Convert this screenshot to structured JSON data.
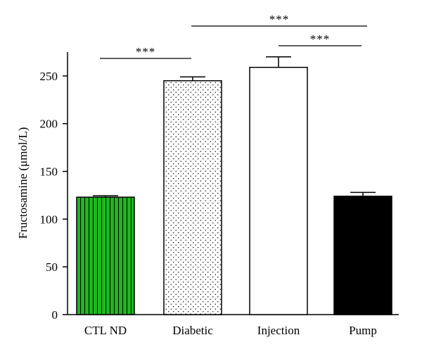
{
  "chart_data": {
    "type": "bar",
    "categories": [
      "CTL ND",
      "Diabetic",
      "Injection",
      "Pump"
    ],
    "values": [
      123,
      245,
      259,
      124
    ],
    "errors": [
      1.5,
      4,
      11,
      4
    ],
    "ylabel": "Fructosamine (μmol/L)",
    "ylim": [
      0,
      275
    ],
    "yticks": [
      0,
      50,
      100,
      150,
      200,
      250
    ],
    "styles": [
      {
        "fill": "#1db81d",
        "pattern": "vertical-stripes"
      },
      {
        "fill": "#ffffff",
        "pattern": "dots"
      },
      {
        "fill": "#ffffff",
        "pattern": "none"
      },
      {
        "fill": "#000000",
        "pattern": "none"
      }
    ],
    "significance": [
      {
        "from": 0,
        "to": 1,
        "label": "***"
      },
      {
        "from": 2,
        "to": 3,
        "label": "***"
      },
      {
        "from": 1,
        "to": 3,
        "label": "***"
      }
    ]
  }
}
